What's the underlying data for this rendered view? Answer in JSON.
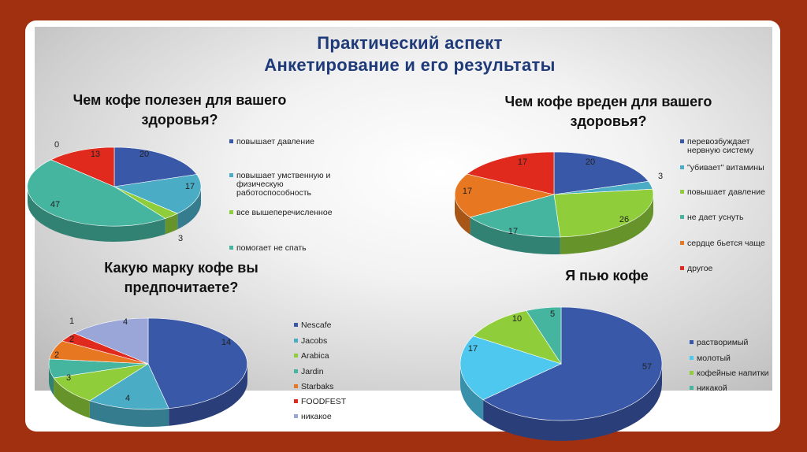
{
  "slide": {
    "title_line1": "Практический аспект",
    "title_line2": "Анкетирование и его результаты"
  },
  "chart_data": [
    {
      "type": "pie",
      "title_line1": "Чем кофе полезен для вашего",
      "title_line2": "здоровья?",
      "slices": [
        {
          "label": "повышает давление",
          "value": 20,
          "color": "#3a58a8"
        },
        {
          "label": "повышает умственную и физическую работоспособность",
          "value": 17,
          "color": "#4bacc6"
        },
        {
          "label": "все вышеперечисленное",
          "value": 3,
          "color": "#8fce3a"
        },
        {
          "label": "помогает не спать",
          "value": 47,
          "color": "#45b5a0"
        },
        {
          "label": "",
          "value": 13,
          "color": "#e02a1e"
        },
        {
          "label": "",
          "value": 0,
          "color": "#9aa5c8"
        }
      ]
    },
    {
      "type": "pie",
      "title_line1": "Чем кофе вреден для вашего",
      "title_line2": "здоровья?",
      "slices": [
        {
          "label": "перевозбуждает нервную систему",
          "value": 20,
          "color": "#3a58a8"
        },
        {
          "label": "\"убивает\" витамины",
          "value": 3,
          "color": "#4bacc6"
        },
        {
          "label": "повышает давление",
          "value": 26,
          "color": "#8fce3a"
        },
        {
          "label": "не дает уснуть",
          "value": 17,
          "color": "#45b5a0"
        },
        {
          "label": "сердце бьется чаще",
          "value": 17,
          "color": "#e87722"
        },
        {
          "label": "другое",
          "value": 17,
          "color": "#e02a1e"
        }
      ]
    },
    {
      "type": "pie",
      "title_line1": "Какую марку кофе вы",
      "title_line2": "предпочитаете?",
      "slices": [
        {
          "label": "Nescafe",
          "value": 14,
          "color": "#3a58a8"
        },
        {
          "label": "Jacobs",
          "value": 4,
          "color": "#4bacc6"
        },
        {
          "label": "Arabica",
          "value": 3,
          "color": "#8fce3a"
        },
        {
          "label": "Jardin",
          "value": 2,
          "color": "#45b5a0"
        },
        {
          "label": "Starbaks",
          "value": 2,
          "color": "#e87722"
        },
        {
          "label": "FOODFEST",
          "value": 1,
          "color": "#e02a1e"
        },
        {
          "label": "никакое",
          "value": 4,
          "color": "#9aa5d8"
        }
      ]
    },
    {
      "type": "pie",
      "title_line1": "Я пью кофе",
      "title_line2": "",
      "slices": [
        {
          "label": "растворимый",
          "value": 57,
          "color": "#3a58a8"
        },
        {
          "label": "молотый",
          "value": 17,
          "color": "#4ec8ee"
        },
        {
          "label": "кофейные напитки",
          "value": 10,
          "color": "#8fce3a"
        },
        {
          "label": "никакой",
          "value": 5,
          "color": "#45b5a0"
        }
      ]
    }
  ]
}
